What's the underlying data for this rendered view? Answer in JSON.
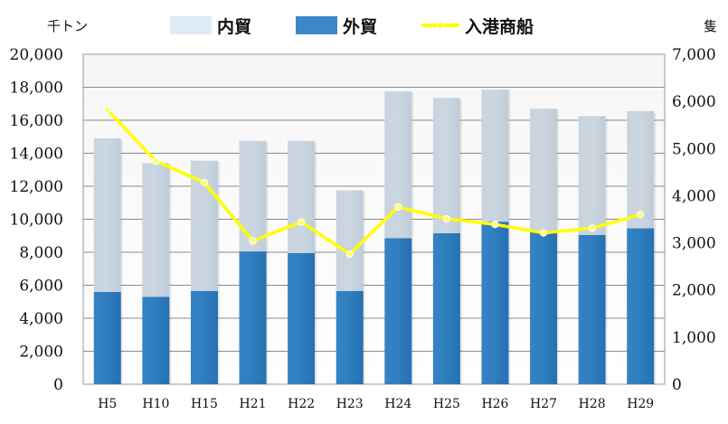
{
  "chart_data": {
    "type": "bar",
    "categories": [
      "H5",
      "H10",
      "H15",
      "H21",
      "H22",
      "H23",
      "H24",
      "H25",
      "H26",
      "H27",
      "H28",
      "H29"
    ],
    "series": [
      {
        "name": "内貿",
        "kind": "stacked-bar",
        "axis": "left",
        "color": "#c5d2dc",
        "values": [
          9300,
          8100,
          7900,
          6700,
          6800,
          6100,
          8900,
          8200,
          8000,
          7400,
          7200,
          7100
        ]
      },
      {
        "name": "外貿",
        "kind": "stacked-bar",
        "axis": "left",
        "color": "#2f7fc1",
        "values": [
          5600,
          5300,
          5650,
          8050,
          7950,
          5650,
          8850,
          9150,
          9850,
          9300,
          9050,
          9450
        ]
      },
      {
        "name": "入港商船",
        "kind": "line",
        "axis": "right",
        "color": "#ffff00",
        "values": [
          5820,
          4730,
          4280,
          3040,
          3440,
          2760,
          3760,
          3510,
          3390,
          3210,
          3310,
          3600
        ]
      }
    ],
    "left_axis": {
      "unit": "千トン",
      "ylim": [
        0,
        20000
      ],
      "ticks": [
        "0",
        "2,000",
        "4,000",
        "6,000",
        "8,000",
        "10,000",
        "12,000",
        "14,000",
        "16,000",
        "18,000",
        "20,000"
      ]
    },
    "right_axis": {
      "unit": "隻",
      "ylim": [
        0,
        7000
      ],
      "ticks": [
        "0",
        "1,000",
        "2,000",
        "3,000",
        "4,000",
        "5,000",
        "6,000",
        "7,000"
      ]
    },
    "legend": {
      "position": "top",
      "items": [
        "内貿",
        "外貿",
        "入港商船"
      ]
    },
    "grid": true,
    "legend_colors": {
      "domestic": "#deeaf6",
      "foreign": "#3b87c7",
      "ships": "#ffff00"
    }
  }
}
